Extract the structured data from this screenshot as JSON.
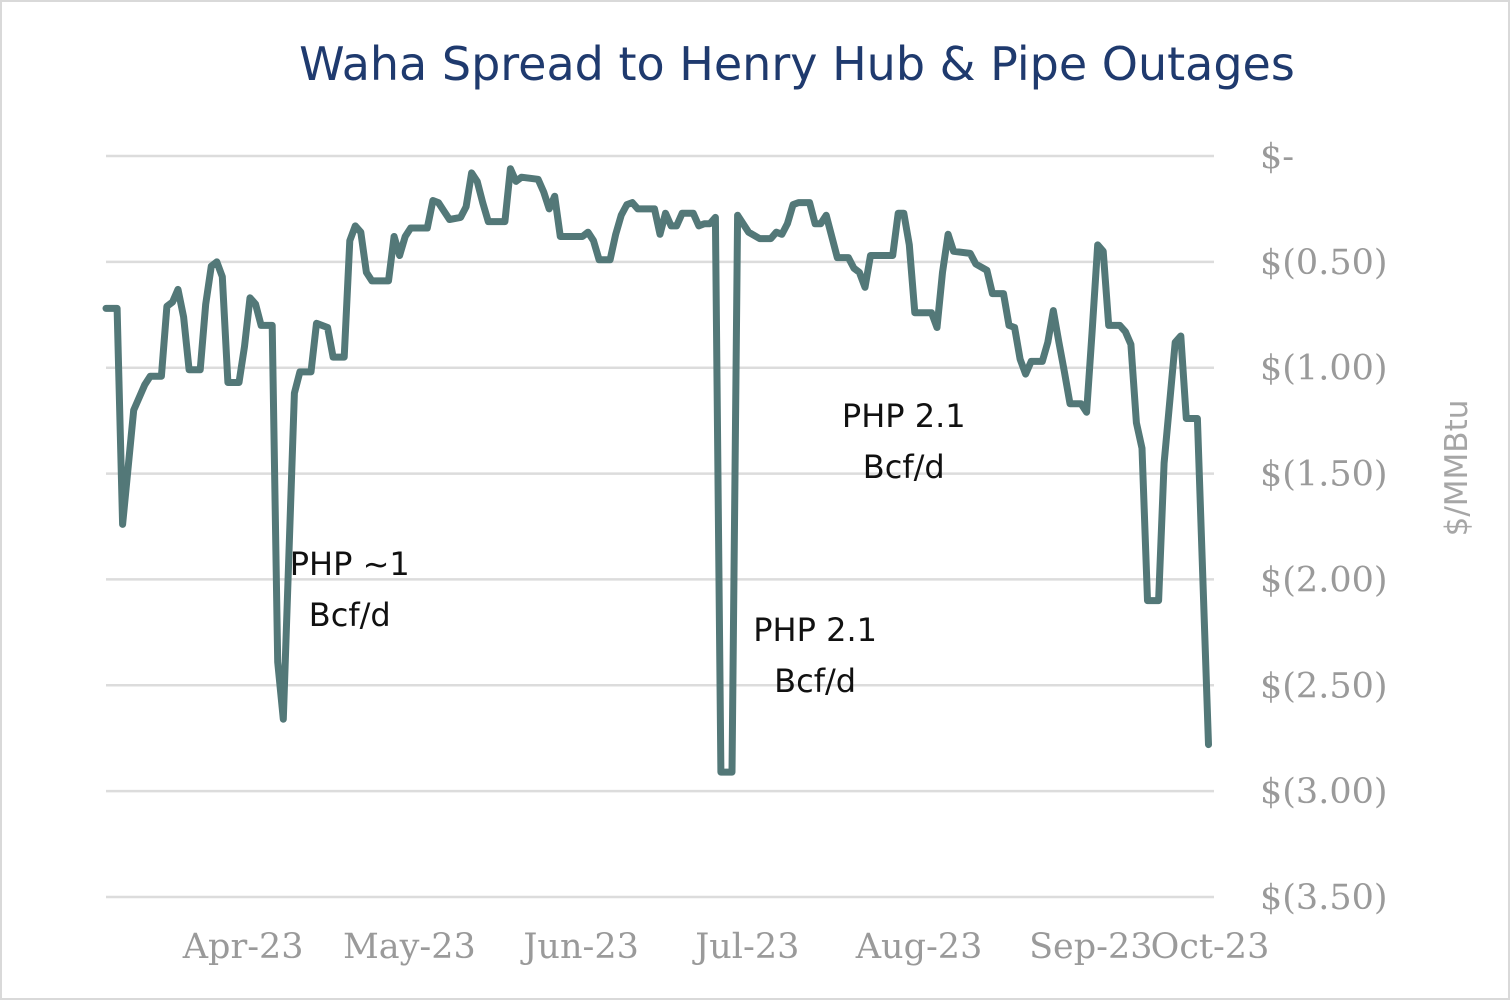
{
  "chart_data": {
    "type": "line",
    "title": "Waha Spread to Henry Hub & Pipe Outages",
    "xlabel": "",
    "ylabel": "$/MMBtu",
    "ylim": [
      -3.5,
      0
    ],
    "xlim": [
      "2023-03-15",
      "2023-10-01"
    ],
    "y_axis_side": "right",
    "grid": true,
    "legend": "none",
    "x_ticks": [
      {
        "date": "2023-04-01",
        "label": "Apr-23"
      },
      {
        "date": "2023-05-01",
        "label": "May-23"
      },
      {
        "date": "2023-06-01",
        "label": "Jun-23"
      },
      {
        "date": "2023-07-01",
        "label": "Jul-23"
      },
      {
        "date": "2023-08-01",
        "label": "Aug-23"
      },
      {
        "date": "2023-09-01",
        "label": "Sep-23"
      },
      {
        "date": "2023-10-01",
        "label": "Oct-23"
      }
    ],
    "y_ticks": [
      {
        "value": 0,
        "label": "$-"
      },
      {
        "value": -0.5,
        "label": "$(0.50)"
      },
      {
        "value": -1.0,
        "label": "$(1.00)"
      },
      {
        "value": -1.5,
        "label": "$(1.50)"
      },
      {
        "value": -2.0,
        "label": "$(2.00)"
      },
      {
        "value": -2.5,
        "label": "$(2.50)"
      },
      {
        "value": -3.0,
        "label": "$(3.00)"
      },
      {
        "value": -3.5,
        "label": "$(3.50)"
      }
    ],
    "series": [
      {
        "color": "#537878",
        "points": [
          [
            "2023-03-15",
            -0.72
          ],
          [
            "2023-03-17",
            -0.72
          ],
          [
            "2023-03-18",
            -1.74
          ],
          [
            "2023-03-20",
            -1.2
          ],
          [
            "2023-03-22",
            -1.08
          ],
          [
            "2023-03-23",
            -1.04
          ],
          [
            "2023-03-25",
            -1.04
          ],
          [
            "2023-03-26",
            -0.71
          ],
          [
            "2023-03-27",
            -0.69
          ],
          [
            "2023-03-28",
            -0.63
          ],
          [
            "2023-03-29",
            -0.76
          ],
          [
            "2023-03-30",
            -1.01
          ],
          [
            "2023-04-01",
            -1.01
          ],
          [
            "2023-04-02",
            -0.7
          ],
          [
            "2023-04-03",
            -0.52
          ],
          [
            "2023-04-04",
            -0.5
          ],
          [
            "2023-04-05",
            -0.57
          ],
          [
            "2023-04-06",
            -1.07
          ],
          [
            "2023-04-08",
            -1.07
          ],
          [
            "2023-04-09",
            -0.9
          ],
          [
            "2023-04-10",
            -0.67
          ],
          [
            "2023-04-11",
            -0.7
          ],
          [
            "2023-04-12",
            -0.8
          ],
          [
            "2023-04-14",
            -0.8
          ],
          [
            "2023-04-15",
            -2.39
          ],
          [
            "2023-04-16",
            -2.66
          ],
          [
            "2023-04-18",
            -1.12
          ],
          [
            "2023-04-19",
            -1.02
          ],
          [
            "2023-04-21",
            -1.02
          ],
          [
            "2023-04-22",
            -0.79
          ],
          [
            "2023-04-24",
            -0.81
          ],
          [
            "2023-04-25",
            -0.95
          ],
          [
            "2023-04-27",
            -0.95
          ],
          [
            "2023-04-28",
            -0.4
          ],
          [
            "2023-04-29",
            -0.33
          ],
          [
            "2023-04-30",
            -0.36
          ],
          [
            "2023-05-01",
            -0.55
          ],
          [
            "2023-05-02",
            -0.59
          ],
          [
            "2023-05-05",
            -0.59
          ],
          [
            "2023-05-06",
            -0.38
          ],
          [
            "2023-05-07",
            -0.47
          ],
          [
            "2023-05-08",
            -0.38
          ],
          [
            "2023-05-09",
            -0.34
          ],
          [
            "2023-05-12",
            -0.34
          ],
          [
            "2023-05-13",
            -0.21
          ],
          [
            "2023-05-14",
            -0.22
          ],
          [
            "2023-05-15",
            -0.26
          ],
          [
            "2023-05-16",
            -0.3
          ],
          [
            "2023-05-18",
            -0.29
          ],
          [
            "2023-05-19",
            -0.24
          ],
          [
            "2023-05-20",
            -0.08
          ],
          [
            "2023-05-21",
            -0.12
          ],
          [
            "2023-05-22",
            -0.22
          ],
          [
            "2023-05-23",
            -0.31
          ],
          [
            "2023-05-26",
            -0.31
          ],
          [
            "2023-05-27",
            -0.06
          ],
          [
            "2023-05-28",
            -0.12
          ],
          [
            "2023-05-29",
            -0.1
          ],
          [
            "2023-06-01",
            -0.11
          ],
          [
            "2023-06-02",
            -0.17
          ],
          [
            "2023-06-03",
            -0.25
          ],
          [
            "2023-06-04",
            -0.19
          ],
          [
            "2023-06-05",
            -0.38
          ],
          [
            "2023-06-09",
            -0.38
          ],
          [
            "2023-06-10",
            -0.36
          ],
          [
            "2023-06-11",
            -0.4
          ],
          [
            "2023-06-12",
            -0.49
          ],
          [
            "2023-06-14",
            -0.49
          ],
          [
            "2023-06-15",
            -0.37
          ],
          [
            "2023-06-16",
            -0.28
          ],
          [
            "2023-06-17",
            -0.23
          ],
          [
            "2023-06-18",
            -0.22
          ],
          [
            "2023-06-19",
            -0.25
          ],
          [
            "2023-06-22",
            -0.25
          ],
          [
            "2023-06-23",
            -0.37
          ],
          [
            "2023-06-24",
            -0.27
          ],
          [
            "2023-06-25",
            -0.33
          ],
          [
            "2023-06-26",
            -0.33
          ],
          [
            "2023-06-27",
            -0.27
          ],
          [
            "2023-06-29",
            -0.27
          ],
          [
            "2023-06-30",
            -0.33
          ],
          [
            "2023-07-01",
            -0.32
          ],
          [
            "2023-07-02",
            -0.32
          ],
          [
            "2023-07-03",
            -0.29
          ],
          [
            "2023-07-04",
            -2.91
          ],
          [
            "2023-07-06",
            -2.91
          ],
          [
            "2023-07-07",
            -0.28
          ],
          [
            "2023-07-09",
            -0.36
          ],
          [
            "2023-07-11",
            -0.39
          ],
          [
            "2023-07-13",
            -0.39
          ],
          [
            "2023-07-14",
            -0.36
          ],
          [
            "2023-07-15",
            -0.37
          ],
          [
            "2023-07-16",
            -0.32
          ],
          [
            "2023-07-17",
            -0.23
          ],
          [
            "2023-07-18",
            -0.22
          ],
          [
            "2023-07-20",
            -0.22
          ],
          [
            "2023-07-21",
            -0.32
          ],
          [
            "2023-07-22",
            -0.32
          ],
          [
            "2023-07-23",
            -0.28
          ],
          [
            "2023-07-25",
            -0.48
          ],
          [
            "2023-07-27",
            -0.48
          ],
          [
            "2023-07-28",
            -0.53
          ],
          [
            "2023-07-29",
            -0.55
          ],
          [
            "2023-07-30",
            -0.62
          ],
          [
            "2023-07-31",
            -0.47
          ],
          [
            "2023-08-04",
            -0.47
          ],
          [
            "2023-08-05",
            -0.27
          ],
          [
            "2023-08-06",
            -0.27
          ],
          [
            "2023-08-07",
            -0.42
          ],
          [
            "2023-08-08",
            -0.74
          ],
          [
            "2023-08-11",
            -0.74
          ],
          [
            "2023-08-12",
            -0.81
          ],
          [
            "2023-08-13",
            -0.55
          ],
          [
            "2023-08-14",
            -0.37
          ],
          [
            "2023-08-15",
            -0.45
          ],
          [
            "2023-08-18",
            -0.46
          ],
          [
            "2023-08-19",
            -0.51
          ],
          [
            "2023-08-21",
            -0.54
          ],
          [
            "2023-08-22",
            -0.65
          ],
          [
            "2023-08-24",
            -0.65
          ],
          [
            "2023-08-25",
            -0.8
          ],
          [
            "2023-08-26",
            -0.81
          ],
          [
            "2023-08-27",
            -0.96
          ],
          [
            "2023-08-28",
            -1.03
          ],
          [
            "2023-08-29",
            -0.97
          ],
          [
            "2023-08-31",
            -0.97
          ],
          [
            "2023-09-01",
            -0.88
          ],
          [
            "2023-09-02",
            -0.73
          ],
          [
            "2023-09-03",
            -0.88
          ],
          [
            "2023-09-04",
            -1.02
          ],
          [
            "2023-09-05",
            -1.17
          ],
          [
            "2023-09-07",
            -1.17
          ],
          [
            "2023-09-08",
            -1.21
          ],
          [
            "2023-09-09",
            -0.83
          ],
          [
            "2023-09-10",
            -0.42
          ],
          [
            "2023-09-11",
            -0.45
          ],
          [
            "2023-09-12",
            -0.8
          ],
          [
            "2023-09-14",
            -0.8
          ],
          [
            "2023-09-15",
            -0.83
          ],
          [
            "2023-09-16",
            -0.89
          ],
          [
            "2023-09-17",
            -1.26
          ],
          [
            "2023-09-18",
            -1.38
          ],
          [
            "2023-09-19",
            -2.1
          ],
          [
            "2023-09-21",
            -2.1
          ],
          [
            "2023-09-22",
            -1.45
          ],
          [
            "2023-09-24",
            -0.88
          ],
          [
            "2023-09-25",
            -0.85
          ],
          [
            "2023-09-26",
            -1.24
          ],
          [
            "2023-09-28",
            -1.24
          ],
          [
            "2023-09-30",
            -2.78
          ]
        ]
      }
    ],
    "annotations": [
      {
        "lines": [
          "PHP ~1",
          "Bcf/d"
        ],
        "date": "2023-04-28",
        "value": -1.98
      },
      {
        "lines": [
          "PHP 2.1",
          "Bcf/d"
        ],
        "date": "2023-08-06",
        "value": -1.28
      },
      {
        "lines": [
          "PHP 2.1",
          "Bcf/d"
        ],
        "date": "2023-07-21",
        "value": -2.29
      }
    ],
    "colors": {
      "title": "#1f3a6e",
      "ticks": "#9a9a9a",
      "ylabel": "#a6a6a6",
      "grid": "#dcdcdc",
      "annotation": "#111111"
    }
  }
}
